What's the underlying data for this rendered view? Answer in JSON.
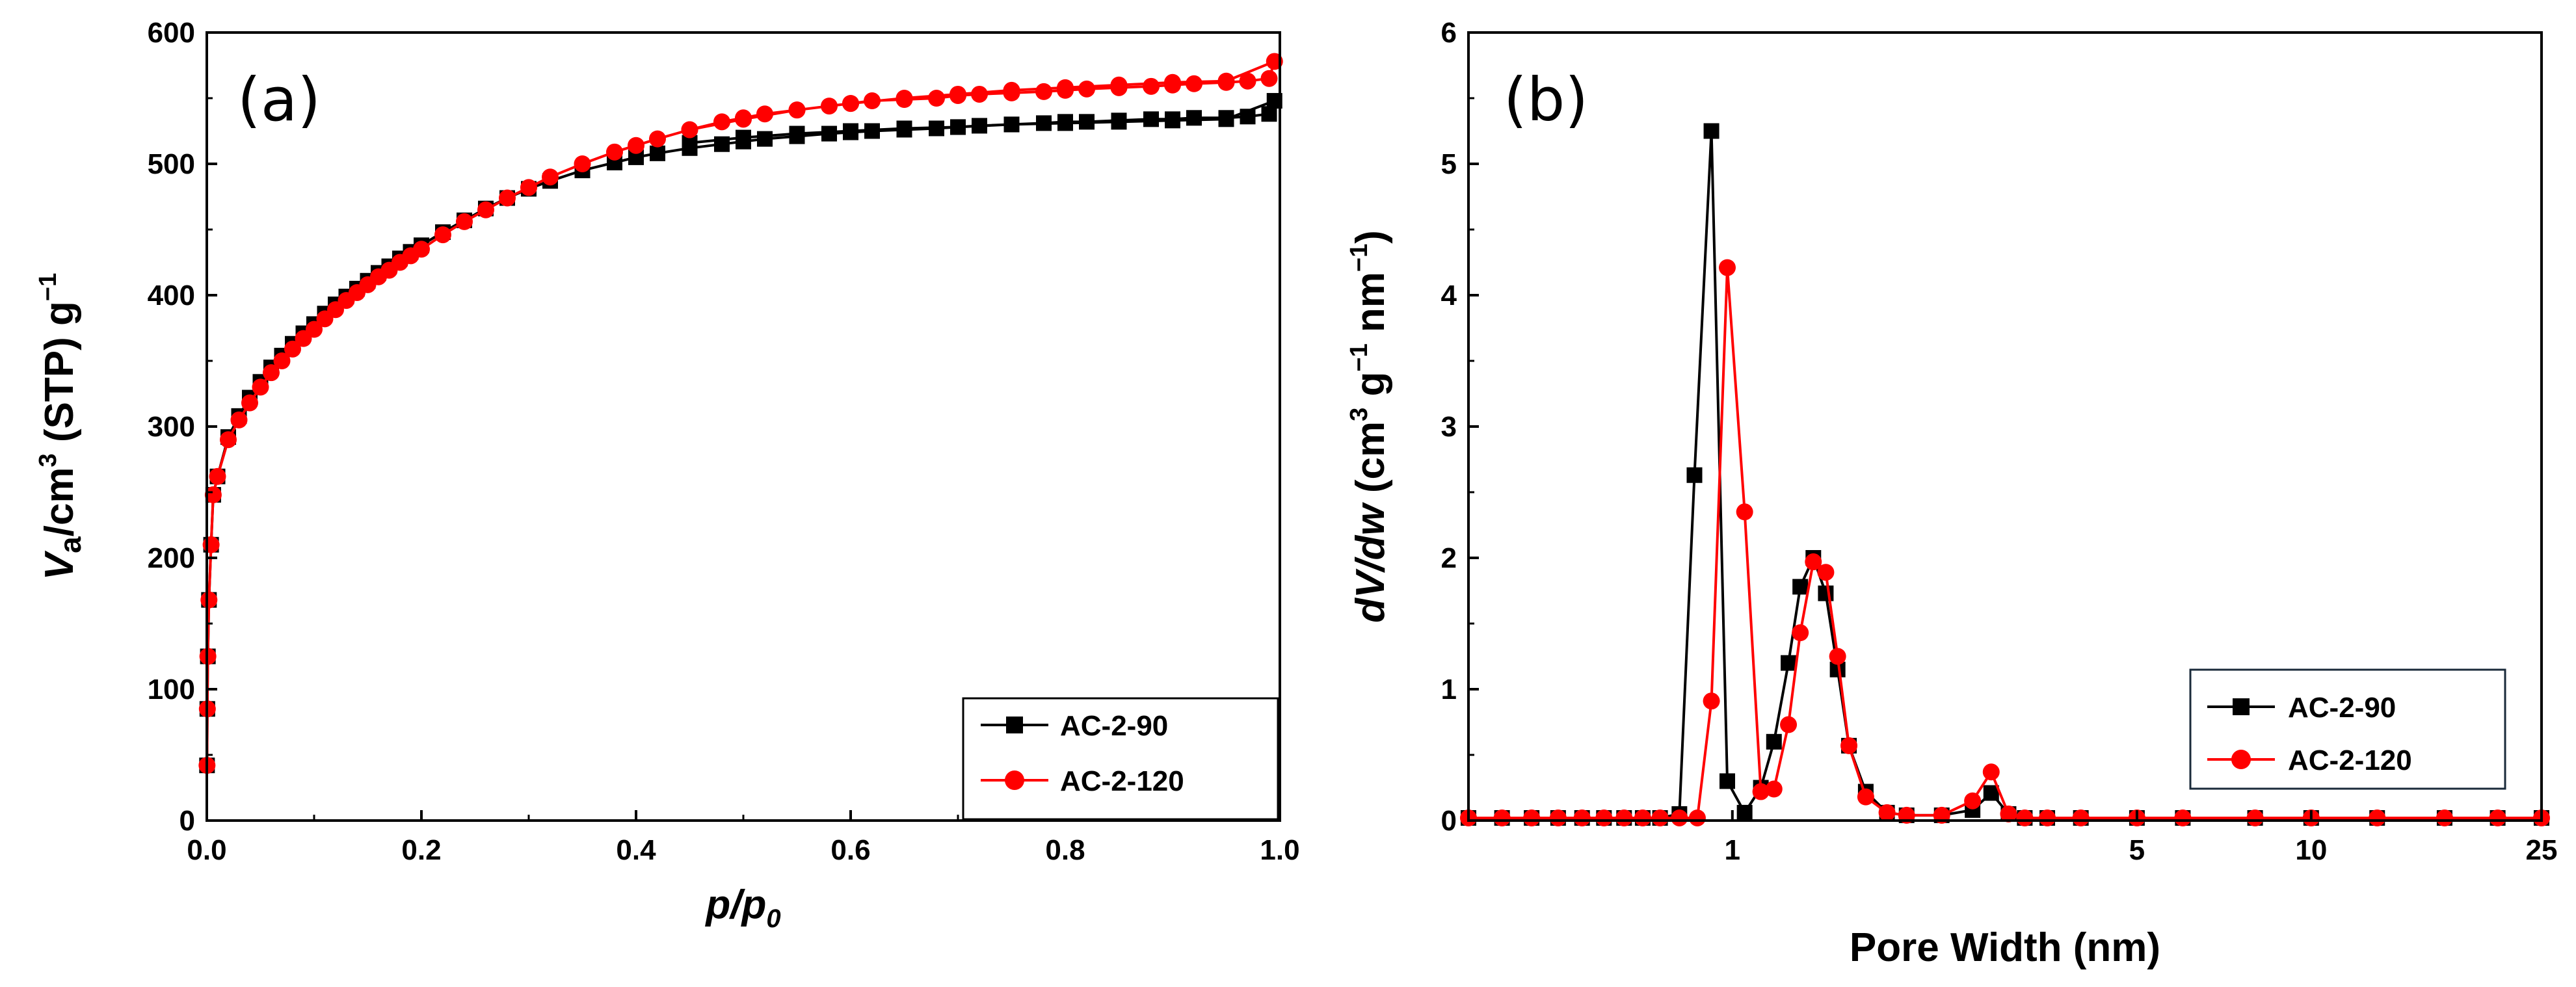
{
  "colors": {
    "black_series": "#000000",
    "red_series": "#ff0000",
    "axis": "#000000"
  },
  "chart_data": [
    {
      "id": "a",
      "type": "line",
      "panel_label": "(a)",
      "xlabel_main": "p/p",
      "xlabel_sub": "0",
      "ylabel": {
        "v": "V",
        "v_sub": "a",
        "unit_1": "/cm",
        "sup_1": "3",
        "unit_2": " (STP) g",
        "sup_2": "−1"
      },
      "xlim": [
        0,
        1.0
      ],
      "ylim": [
        0,
        600
      ],
      "xticks": [
        0.0,
        0.2,
        0.4,
        0.6,
        0.8,
        1.0
      ],
      "xtick_labels": [
        "0.0",
        "0.2",
        "0.4",
        "0.6",
        "0.8",
        "1.0"
      ],
      "yticks": [
        0,
        100,
        200,
        300,
        400,
        500,
        600
      ],
      "ytick_labels": [
        "0",
        "100",
        "200",
        "300",
        "400",
        "500",
        "600"
      ],
      "legend_position": "bottom-right",
      "series": [
        {
          "name": "AC-2-90",
          "color": "#000000",
          "marker": "square",
          "x": [
            0.0002,
            0.0005,
            0.001,
            0.002,
            0.004,
            0.006,
            0.01,
            0.02,
            0.03,
            0.04,
            0.05,
            0.06,
            0.07,
            0.08,
            0.09,
            0.1,
            0.11,
            0.12,
            0.13,
            0.14,
            0.15,
            0.16,
            0.17,
            0.18,
            0.19,
            0.2,
            0.22,
            0.24,
            0.26,
            0.28,
            0.3,
            0.32,
            0.35,
            0.38,
            0.4,
            0.42,
            0.45,
            0.48,
            0.5,
            0.52,
            0.55,
            0.58,
            0.6,
            0.62,
            0.65,
            0.68,
            0.7,
            0.72,
            0.75,
            0.78,
            0.8,
            0.82,
            0.85,
            0.88,
            0.9,
            0.92,
            0.95,
            0.97,
            0.99,
            0.995,
            0.95,
            0.9,
            0.85,
            0.8,
            0.75,
            0.7,
            0.65,
            0.6,
            0.55,
            0.5,
            0.45
          ],
          "y": [
            42,
            85,
            125,
            168,
            210,
            248,
            262,
            292,
            308,
            322,
            334,
            345,
            354,
            363,
            371,
            378,
            386,
            393,
            399,
            405,
            411,
            417,
            422,
            428,
            433,
            438,
            448,
            457,
            466,
            474,
            481,
            487,
            495,
            501,
            505,
            508,
            512,
            515,
            517,
            519,
            521,
            523,
            524,
            525,
            526,
            527,
            528,
            529,
            530,
            531,
            532,
            532,
            533,
            534,
            534,
            535,
            535,
            536,
            538,
            548,
            534,
            533,
            532,
            531,
            530,
            528,
            527,
            525,
            523,
            520,
            516
          ]
        },
        {
          "name": "AC-2-120",
          "color": "#ff0000",
          "marker": "circle",
          "x": [
            0.0002,
            0.0005,
            0.001,
            0.002,
            0.004,
            0.006,
            0.01,
            0.02,
            0.03,
            0.04,
            0.05,
            0.06,
            0.07,
            0.08,
            0.09,
            0.1,
            0.11,
            0.12,
            0.13,
            0.14,
            0.15,
            0.16,
            0.17,
            0.18,
            0.19,
            0.2,
            0.22,
            0.24,
            0.26,
            0.28,
            0.3,
            0.32,
            0.35,
            0.38,
            0.4,
            0.42,
            0.45,
            0.48,
            0.5,
            0.52,
            0.55,
            0.58,
            0.6,
            0.62,
            0.65,
            0.68,
            0.7,
            0.72,
            0.75,
            0.78,
            0.8,
            0.82,
            0.85,
            0.88,
            0.9,
            0.92,
            0.95,
            0.97,
            0.99,
            0.995,
            0.95,
            0.9,
            0.85,
            0.8,
            0.75,
            0.7,
            0.65,
            0.6,
            0.55,
            0.5,
            0.45
          ],
          "y": [
            42,
            85,
            125,
            168,
            210,
            248,
            262,
            290,
            305,
            318,
            330,
            341,
            350,
            359,
            367,
            374,
            382,
            389,
            396,
            402,
            408,
            414,
            419,
            425,
            430,
            435,
            446,
            456,
            465,
            474,
            482,
            490,
            500,
            509,
            514,
            519,
            526,
            532,
            535,
            538,
            541,
            544,
            546,
            548,
            549,
            550,
            552,
            553,
            554,
            555,
            556,
            557,
            558,
            559,
            560,
            561,
            562,
            563,
            565,
            578,
            563,
            562,
            560,
            558,
            556,
            553,
            550,
            546,
            541,
            534,
            526
          ]
        }
      ]
    },
    {
      "id": "b",
      "type": "line",
      "panel_label": "(b)",
      "xlabel": "Pore Width (nm)",
      "ylabel": {
        "main": "dV/dw",
        "unit_1": " (cm",
        "sup_1": "3",
        "unit_2": " g",
        "sup_2": "−1",
        "unit_3": " nm",
        "sup_3": "−1",
        "unit_4": ")"
      },
      "x_scale": "log",
      "xlim": [
        0.35,
        25
      ],
      "ylim": [
        0,
        6
      ],
      "xticks": [
        1,
        5,
        10,
        25
      ],
      "xtick_labels": [
        "1",
        "5",
        "10",
        "25"
      ],
      "yticks": [
        0,
        1,
        2,
        3,
        4,
        5,
        6
      ],
      "ytick_labels": [
        "0",
        "1",
        "2",
        "3",
        "4",
        "5",
        "6"
      ],
      "legend_position": "bottom-right",
      "series": [
        {
          "name": "AC-2-90",
          "color": "#000000",
          "marker": "square",
          "x": [
            0.35,
            0.4,
            0.45,
            0.5,
            0.55,
            0.6,
            0.65,
            0.7,
            0.75,
            0.81,
            0.86,
            0.92,
            0.98,
            1.05,
            1.12,
            1.18,
            1.25,
            1.31,
            1.38,
            1.45,
            1.52,
            1.59,
            1.7,
            1.85,
            2.0,
            2.3,
            2.6,
            2.8,
            3.0,
            3.2,
            3.5,
            4.0,
            5.0,
            6.0,
            8.0,
            10,
            13,
            17,
            21,
            25
          ],
          "y": [
            0.02,
            0.02,
            0.02,
            0.02,
            0.02,
            0.02,
            0.02,
            0.02,
            0.02,
            0.05,
            2.63,
            5.25,
            0.3,
            0.06,
            0.25,
            0.6,
            1.2,
            1.78,
            2.0,
            1.73,
            1.15,
            0.57,
            0.22,
            0.06,
            0.04,
            0.04,
            0.08,
            0.21,
            0.05,
            0.02,
            0.02,
            0.02,
            0.02,
            0.02,
            0.02,
            0.02,
            0.02,
            0.02,
            0.02,
            0.02
          ]
        },
        {
          "name": "AC-2-120",
          "color": "#ff0000",
          "marker": "circle",
          "x": [
            0.35,
            0.4,
            0.45,
            0.5,
            0.55,
            0.6,
            0.65,
            0.7,
            0.75,
            0.81,
            0.87,
            0.92,
            0.98,
            1.05,
            1.12,
            1.18,
            1.25,
            1.31,
            1.38,
            1.45,
            1.52,
            1.59,
            1.7,
            1.85,
            2.0,
            2.3,
            2.6,
            2.8,
            3.0,
            3.2,
            3.5,
            4.0,
            5.0,
            6.0,
            8.0,
            10,
            13,
            17,
            21,
            25
          ],
          "y": [
            0.02,
            0.02,
            0.02,
            0.02,
            0.02,
            0.02,
            0.02,
            0.02,
            0.02,
            0.02,
            0.02,
            0.91,
            4.21,
            2.35,
            0.22,
            0.24,
            0.73,
            1.43,
            1.97,
            1.89,
            1.25,
            0.57,
            0.18,
            0.06,
            0.04,
            0.04,
            0.15,
            0.37,
            0.05,
            0.02,
            0.02,
            0.02,
            0.02,
            0.02,
            0.02,
            0.02,
            0.02,
            0.02,
            0.02,
            0.02
          ]
        }
      ]
    }
  ]
}
